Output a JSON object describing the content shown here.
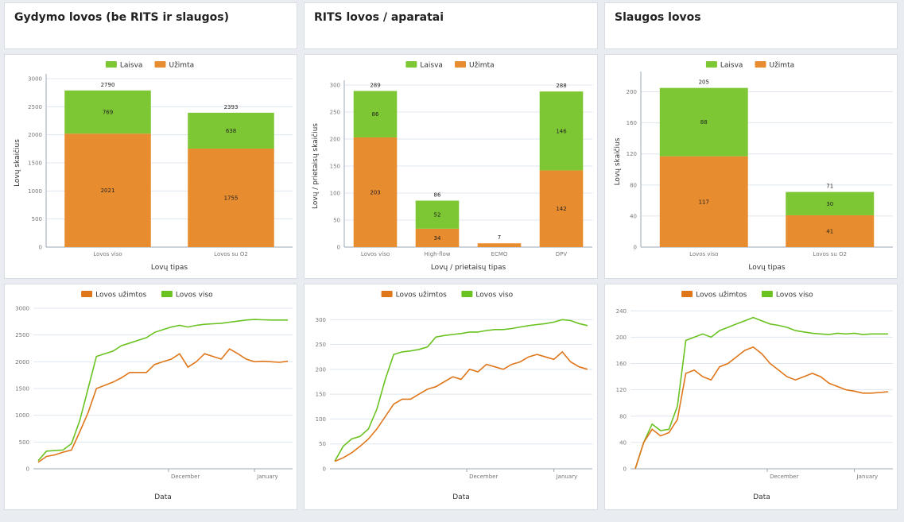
{
  "colors": {
    "free": "#7dc734",
    "occupied": "#e78c2f",
    "line_occupied": "#e0761a",
    "line_total": "#6ac221"
  },
  "headers": [
    {
      "title": "Gydymo lovos (be RITS ir slaugos)"
    },
    {
      "title": "RITS lovos / aparatai"
    },
    {
      "title": "Slaugos lovos"
    }
  ],
  "chart_data": [
    {
      "type": "bar",
      "stacked": true,
      "categories": [
        "Lovos viso",
        "Lovos su O2"
      ],
      "series": [
        {
          "name": "Užimta",
          "values": [
            2021,
            1755
          ]
        },
        {
          "name": "Laisva",
          "values": [
            769,
            638
          ]
        }
      ],
      "totals": [
        2790,
        2393
      ],
      "xlabel": "Lovų tipas",
      "ylabel": "Lovų skaičius",
      "ylim": [
        0,
        3000
      ],
      "yticks": [
        0,
        500,
        1000,
        1500,
        2000,
        2500,
        3000
      ],
      "legend": [
        "Laisva",
        "Užimta"
      ],
      "legend_position": "top"
    },
    {
      "type": "bar",
      "stacked": true,
      "categories": [
        "Lovos viso",
        "High-flow",
        "ECMO",
        "DPV"
      ],
      "series": [
        {
          "name": "Užimta",
          "values": [
            203,
            34,
            7,
            142
          ]
        },
        {
          "name": "Laisva",
          "values": [
            86,
            52,
            0,
            146
          ]
        }
      ],
      "segment_labels_occupied": [
        "203",
        "34",
        "",
        "142"
      ],
      "segment_labels_free": [
        "86",
        "52",
        "",
        "146"
      ],
      "totals": [
        289,
        86,
        7,
        288
      ],
      "xlabel": "Lovų / prietaisų tipas",
      "ylabel": "Lovų / prietaisų skaičius",
      "ylim": [
        0,
        300
      ],
      "yticks": [
        0,
        50,
        100,
        150,
        200,
        250,
        300
      ],
      "legend": [
        "Laisva",
        "Užimta"
      ],
      "legend_position": "top"
    },
    {
      "type": "bar",
      "stacked": true,
      "categories": [
        "Lovos viso",
        "Lovos su O2"
      ],
      "series": [
        {
          "name": "Užimta",
          "values": [
            117,
            41
          ]
        },
        {
          "name": "Laisva",
          "values": [
            88,
            30
          ]
        }
      ],
      "totals": [
        205,
        71
      ],
      "xlabel": "Lovų tipas",
      "ylabel": "Lovų skaičius",
      "ylim": [
        0,
        220
      ],
      "yticks": [
        0,
        40,
        80,
        120,
        160,
        200
      ],
      "legend": [
        "Laisva",
        "Užimta"
      ],
      "legend_position": "top"
    },
    {
      "type": "line",
      "x": [
        "2020-10-15",
        "2020-10-18",
        "2020-10-21",
        "2020-10-24",
        "2020-10-27",
        "2020-10-30",
        "2020-11-02",
        "2020-11-05",
        "2020-11-08",
        "2020-11-11",
        "2020-11-14",
        "2020-11-17",
        "2020-11-20",
        "2020-11-23",
        "2020-11-26",
        "2020-11-29",
        "2020-12-02",
        "2020-12-05",
        "2020-12-08",
        "2020-12-11",
        "2020-12-14",
        "2020-12-17",
        "2020-12-20",
        "2020-12-23",
        "2020-12-26",
        "2020-12-29",
        "2021-01-01",
        "2021-01-04",
        "2021-01-07",
        "2021-01-10",
        "2021-01-13"
      ],
      "series": [
        {
          "name": "Lovos užimtos",
          "values": [
            120,
            230,
            260,
            310,
            350,
            690,
            1050,
            1500,
            1560,
            1620,
            1700,
            1800,
            1800,
            1800,
            1950,
            2000,
            2050,
            2150,
            1900,
            2000,
            2150,
            2100,
            2050,
            2240,
            2150,
            2050,
            2000,
            2010,
            2000,
            1990,
            2010
          ]
        },
        {
          "name": "Lovos viso",
          "values": [
            150,
            330,
            340,
            350,
            470,
            900,
            1500,
            2100,
            2150,
            2200,
            2300,
            2350,
            2400,
            2450,
            2550,
            2600,
            2650,
            2680,
            2650,
            2680,
            2700,
            2710,
            2720,
            2740,
            2760,
            2780,
            2790,
            2785,
            2780,
            2780,
            2780
          ]
        }
      ],
      "xticks": [
        "December",
        "January"
      ],
      "xlabel": "Data",
      "ylabel": "",
      "ylim": [
        0,
        3000
      ],
      "yticks": [
        0,
        500,
        1000,
        1500,
        2000,
        2500,
        3000
      ],
      "legend": [
        "Lovos užimtos",
        "Lovos viso"
      ],
      "legend_position": "top"
    },
    {
      "type": "line",
      "x": [
        "2020-10-15",
        "2020-10-18",
        "2020-10-21",
        "2020-10-24",
        "2020-10-27",
        "2020-10-30",
        "2020-11-02",
        "2020-11-05",
        "2020-11-08",
        "2020-11-11",
        "2020-11-14",
        "2020-11-17",
        "2020-11-20",
        "2020-11-23",
        "2020-11-26",
        "2020-11-29",
        "2020-12-02",
        "2020-12-05",
        "2020-12-08",
        "2020-12-11",
        "2020-12-14",
        "2020-12-17",
        "2020-12-20",
        "2020-12-23",
        "2020-12-26",
        "2020-12-29",
        "2021-01-01",
        "2021-01-04",
        "2021-01-07",
        "2021-01-10",
        "2021-01-13"
      ],
      "series": [
        {
          "name": "Lovos užimtos",
          "values": [
            15,
            22,
            32,
            45,
            60,
            80,
            105,
            130,
            140,
            140,
            150,
            160,
            165,
            175,
            185,
            180,
            200,
            195,
            210,
            205,
            200,
            210,
            215,
            225,
            230,
            225,
            220,
            235,
            215,
            205,
            200
          ]
        },
        {
          "name": "Lovos viso",
          "values": [
            15,
            45,
            60,
            65,
            80,
            120,
            180,
            230,
            235,
            237,
            240,
            245,
            265,
            268,
            270,
            272,
            275,
            275,
            278,
            280,
            280,
            282,
            285,
            288,
            290,
            292,
            295,
            300,
            298,
            292,
            288
          ]
        }
      ],
      "xticks": [
        "December",
        "January"
      ],
      "xlabel": "Data",
      "ylabel": "",
      "ylim": [
        0,
        310
      ],
      "yticks": [
        0,
        50,
        100,
        150,
        200,
        250,
        300
      ],
      "legend": [
        "Lovos užimtos",
        "Lovos viso"
      ],
      "legend_position": "top"
    },
    {
      "type": "line",
      "x": [
        "2020-10-15",
        "2020-10-18",
        "2020-10-21",
        "2020-10-24",
        "2020-10-27",
        "2020-10-30",
        "2020-11-02",
        "2020-11-05",
        "2020-11-08",
        "2020-11-11",
        "2020-11-14",
        "2020-11-17",
        "2020-11-20",
        "2020-11-23",
        "2020-11-26",
        "2020-11-29",
        "2020-12-02",
        "2020-12-05",
        "2020-12-08",
        "2020-12-11",
        "2020-12-14",
        "2020-12-17",
        "2020-12-20",
        "2020-12-23",
        "2020-12-26",
        "2020-12-29",
        "2021-01-01",
        "2021-01-04",
        "2021-01-07",
        "2021-01-10",
        "2021-01-13"
      ],
      "series": [
        {
          "name": "Lovos užimtos",
          "values": [
            0,
            40,
            60,
            50,
            55,
            75,
            145,
            150,
            140,
            135,
            155,
            160,
            170,
            180,
            185,
            175,
            160,
            150,
            140,
            135,
            140,
            145,
            140,
            130,
            125,
            120,
            118,
            115,
            115,
            116,
            117
          ]
        },
        {
          "name": "Lovos viso",
          "values": [
            0,
            40,
            68,
            58,
            60,
            95,
            195,
            200,
            205,
            200,
            210,
            215,
            220,
            225,
            230,
            225,
            220,
            218,
            215,
            210,
            208,
            206,
            205,
            204,
            206,
            205,
            206,
            204,
            205,
            205,
            205
          ]
        }
      ],
      "xticks": [
        "December",
        "January"
      ],
      "xlabel": "Data",
      "ylabel": "",
      "ylim": [
        0,
        250
      ],
      "yticks": [
        0,
        40,
        80,
        120,
        160,
        200,
        240
      ],
      "legend": [
        "Lovos užimtos",
        "Lovos viso"
      ],
      "legend_position": "top"
    }
  ]
}
